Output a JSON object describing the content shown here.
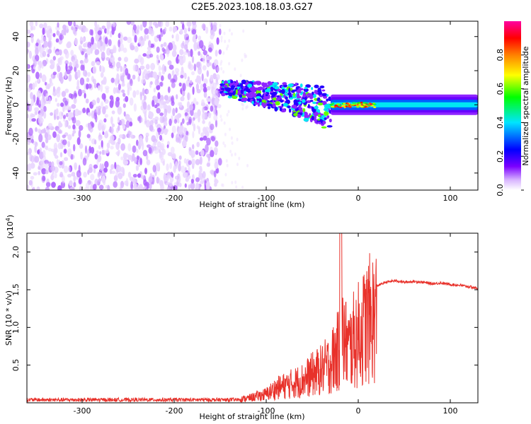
{
  "title": "C2E5.2023.108.18.03.G27",
  "chart_data": [
    {
      "type": "heatmap",
      "title": "C2E5.2023.108.18.03.G27",
      "xlabel": "Height of straight line (km)",
      "ylabel": "Frequency (Hz)",
      "xlim": [
        -360,
        130
      ],
      "ylim": [
        -50,
        49
      ],
      "xticks": [
        -300,
        -200,
        -100,
        0,
        100
      ],
      "xtick_labels": [
        "-300",
        "-200",
        "-100",
        "0",
        "100"
      ],
      "yticks": [
        -40,
        -20,
        0,
        20,
        40
      ],
      "ytick_labels": [
        "-40",
        "-20",
        "0",
        "20",
        "40"
      ],
      "colorbar": {
        "label": "Normalized spectral amplitude",
        "range": [
          0,
          1
        ],
        "ticks": [
          0.0,
          0.2,
          0.4,
          0.6,
          0.8
        ],
        "tick_labels": [
          "0.0",
          "0.2",
          "0.4",
          "0.6",
          "0.8"
        ],
        "colors": [
          "#ffffff",
          "#d8b4ff",
          "#7b00ff",
          "#0000ff",
          "#00e5ff",
          "#00ff00",
          "#ffff00",
          "#ff8000",
          "#ff0000",
          "#ff00a0"
        ]
      },
      "regions": [
        {
          "name": "broadband noise",
          "x_range": [
            -360,
            -150
          ],
          "freq_range": [
            -50,
            49
          ],
          "amplitude": 0.15
        },
        {
          "name": "transition",
          "x_range": [
            -150,
            -30
          ],
          "freq_center_start": 10,
          "freq_center_end": 0,
          "amplitude": 0.4
        },
        {
          "name": "carrier",
          "x_range": [
            -30,
            130
          ],
          "freq_center": 0,
          "amplitude": 0.35
        }
      ]
    },
    {
      "type": "line",
      "xlabel": "Height of straight line (km)",
      "ylabel": "SNR (10 * v/v)",
      "yscale_label": "(x10",
      "yscale_exp": "4",
      "xlim": [
        -360,
        130
      ],
      "ylim": [
        0,
        22500
      ],
      "xticks": [
        -300,
        -200,
        -100,
        0,
        100
      ],
      "xtick_labels": [
        "-300",
        "-200",
        "-100",
        "0",
        "100"
      ],
      "yticks": [
        5000,
        10000,
        15000,
        20000
      ],
      "ytick_labels": [
        "0.5",
        "1.0",
        "1.5",
        "2.0"
      ],
      "color": "#e8312a",
      "series": [
        {
          "name": "SNR",
          "x": [
            -360,
            -300,
            -200,
            -140,
            -120,
            -100,
            -90,
            -80,
            -70,
            -60,
            -50,
            -40,
            -30,
            -25,
            -20,
            -18,
            -15,
            -10,
            -5,
            0,
            5,
            10,
            20,
            30,
            40,
            50,
            60,
            70,
            80,
            90,
            100,
            110,
            120,
            130
          ],
          "y": [
            500,
            400,
            400,
            450,
            800,
            1500,
            2500,
            3000,
            3500,
            4000,
            5000,
            5800,
            7000,
            8500,
            9500,
            12000,
            11000,
            9500,
            11000,
            12000,
            13000,
            14500,
            15500,
            16000,
            16200,
            16000,
            16100,
            16000,
            15800,
            15900,
            15700,
            15600,
            15400,
            15200
          ]
        }
      ]
    }
  ]
}
